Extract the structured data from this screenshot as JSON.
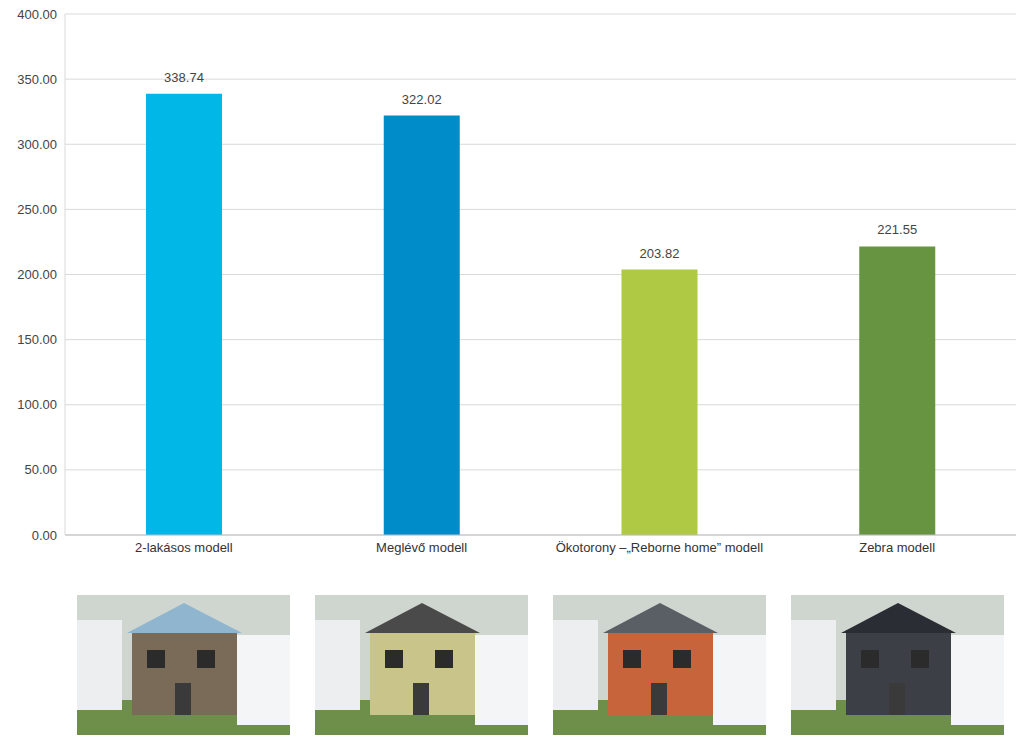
{
  "chart_data": {
    "type": "bar",
    "categories": [
      "2-lakásos modell",
      "Meglévő modell",
      "Ökotorony –„Reborne home” modell",
      "Zebra modell"
    ],
    "values": [
      338.74,
      322.02,
      203.82,
      221.55
    ],
    "colors": [
      "#00b7e8",
      "#008cc8",
      "#afc945",
      "#669441"
    ],
    "ylim": [
      0,
      400
    ],
    "yticks": [
      {
        "value": 0,
        "label": "0.00"
      },
      {
        "value": 50,
        "label": "50.00"
      },
      {
        "value": 100,
        "label": "100.00"
      },
      {
        "value": 150,
        "label": "150.00"
      },
      {
        "value": 200,
        "label": "200.00"
      },
      {
        "value": 250,
        "label": "250.00"
      },
      {
        "value": 300,
        "label": "300.00"
      },
      {
        "value": 350,
        "label": "350.00"
      },
      {
        "value": 400,
        "label": "400.00"
      }
    ],
    "grid": true,
    "data_labels": true
  }
}
